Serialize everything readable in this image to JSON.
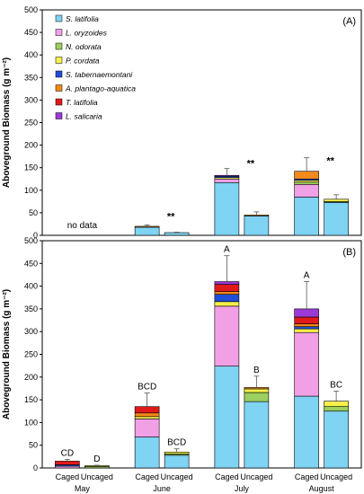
{
  "colors": {
    "S. latifolia": "#7fd3f3",
    "L. oryzoides": "#f2a0e6",
    "N. odorata": "#9bcf5f",
    "P. cordata": "#f7ef4a",
    "S. tabernaemontani": "#1f4fd8",
    "A. plantago-aquatica": "#f08a1a",
    "T. latifolia": "#e01a1a",
    "L. salicaria": "#9b3ad6"
  },
  "chart_data": [
    {
      "type": "bar",
      "stacked": true,
      "panel_label": "(A)",
      "ylabel": "Aboveground Biomass (g m⁻²)",
      "ylim": [
        0,
        500
      ],
      "yticks": [
        0,
        50,
        100,
        150,
        200,
        250,
        300,
        350,
        400,
        450,
        500
      ],
      "legend": {
        "placement": "top-left",
        "entries": [
          "S. latifolia",
          "L. oryzoides",
          "N. odorata",
          "P. cordata",
          "S. tabernaemontani",
          "A. plantago-aquatica",
          "T. latifolia",
          "L. salicaria"
        ]
      },
      "bars": [
        {
          "month": "June",
          "treatment": "Caged",
          "segments": [
            {
              "species": "S. latifolia",
              "value": 18
            },
            {
              "species": "A. plantago-aquatica",
              "value": 2
            }
          ],
          "error": 3
        },
        {
          "month": "June",
          "treatment": "Uncaged",
          "segments": [
            {
              "species": "S. latifolia",
              "value": 6
            }
          ],
          "error": 1
        },
        {
          "month": "July",
          "treatment": "Caged",
          "segments": [
            {
              "species": "S. latifolia",
              "value": 117
            },
            {
              "species": "L. oryzoides",
              "value": 8
            },
            {
              "species": "P. cordata",
              "value": 3
            },
            {
              "species": "S. tabernaemontani",
              "value": 3
            },
            {
              "species": "L. salicaria",
              "value": 2
            }
          ],
          "error": 15
        },
        {
          "month": "July",
          "treatment": "Uncaged",
          "segments": [
            {
              "species": "S. latifolia",
              "value": 43
            },
            {
              "species": "A. plantago-aquatica",
              "value": 2
            }
          ],
          "error": 7
        },
        {
          "month": "August",
          "treatment": "Caged",
          "segments": [
            {
              "species": "S. latifolia",
              "value": 85
            },
            {
              "species": "L. oryzoides",
              "value": 28
            },
            {
              "species": "N. odorata",
              "value": 5
            },
            {
              "species": "P. cordata",
              "value": 4
            },
            {
              "species": "S. tabernaemontani",
              "value": 3
            },
            {
              "species": "A. plantago-aquatica",
              "value": 17
            }
          ],
          "error": 30
        },
        {
          "month": "August",
          "treatment": "Uncaged",
          "segments": [
            {
              "species": "S. latifolia",
              "value": 73
            },
            {
              "species": "N. odorata",
              "value": 2
            },
            {
              "species": "P. cordata",
              "value": 5
            }
          ],
          "error": 10
        }
      ],
      "annotations": [
        {
          "text": "no data",
          "month": "May",
          "at": 0
        },
        {
          "text": "**",
          "month": "June",
          "at": 35
        },
        {
          "text": "**",
          "month": "July",
          "at": 152
        },
        {
          "text": "**",
          "month": "August",
          "at": 158
        }
      ]
    },
    {
      "type": "bar",
      "stacked": true,
      "panel_label": "(B)",
      "ylabel": "Aboveground Biomass (g m⁻²)",
      "ylim": [
        0,
        500
      ],
      "yticks": [
        0,
        50,
        100,
        150,
        200,
        250,
        300,
        350,
        400,
        450,
        500
      ],
      "categories_months": [
        "May",
        "June",
        "July",
        "August"
      ],
      "treatments": [
        "Caged",
        "Uncaged"
      ],
      "bars": [
        {
          "month": "May",
          "treatment": "Caged",
          "segments": [
            {
              "species": "L. oryzoides",
              "value": 4
            },
            {
              "species": "S. tabernaemontani",
              "value": 3
            },
            {
              "species": "T. latifolia",
              "value": 8
            }
          ],
          "error": 4,
          "letter": "CD"
        },
        {
          "month": "May",
          "treatment": "Uncaged",
          "segments": [
            {
              "species": "N. odorata",
              "value": 3
            },
            {
              "species": "P. cordata",
              "value": 2
            }
          ],
          "error": 1,
          "letter": "D"
        },
        {
          "month": "June",
          "treatment": "Caged",
          "segments": [
            {
              "species": "S. latifolia",
              "value": 68
            },
            {
              "species": "L. oryzoides",
              "value": 40
            },
            {
              "species": "P. cordata",
              "value": 5
            },
            {
              "species": "A. plantago-aquatica",
              "value": 8
            },
            {
              "species": "T. latifolia",
              "value": 14
            }
          ],
          "error": 30,
          "letter": "BCD"
        },
        {
          "month": "June",
          "treatment": "Uncaged",
          "segments": [
            {
              "species": "S. latifolia",
              "value": 28
            },
            {
              "species": "N. odorata",
              "value": 3
            },
            {
              "species": "P. cordata",
              "value": 4
            }
          ],
          "error": 7,
          "letter": "BCD"
        },
        {
          "month": "July",
          "treatment": "Caged",
          "segments": [
            {
              "species": "S. latifolia",
              "value": 224
            },
            {
              "species": "L. oryzoides",
              "value": 132
            },
            {
              "species": "P. cordata",
              "value": 10
            },
            {
              "species": "S. tabernaemontani",
              "value": 16
            },
            {
              "species": "A. plantago-aquatica",
              "value": 6
            },
            {
              "species": "T. latifolia",
              "value": 16
            },
            {
              "species": "L. salicaria",
              "value": 6
            }
          ],
          "error": 57,
          "letter": "A"
        },
        {
          "month": "July",
          "treatment": "Uncaged",
          "segments": [
            {
              "species": "S. latifolia",
              "value": 146
            },
            {
              "species": "N. odorata",
              "value": 20
            },
            {
              "species": "P. cordata",
              "value": 8
            },
            {
              "species": "A. plantago-aquatica",
              "value": 3
            }
          ],
          "error": 25,
          "letter": "B"
        },
        {
          "month": "August",
          "treatment": "Caged",
          "segments": [
            {
              "species": "S. latifolia",
              "value": 158
            },
            {
              "species": "L. oryzoides",
              "value": 140
            },
            {
              "species": "P. cordata",
              "value": 8
            },
            {
              "species": "S. tabernaemontani",
              "value": 5
            },
            {
              "species": "A. plantago-aquatica",
              "value": 6
            },
            {
              "species": "T. latifolia",
              "value": 15
            },
            {
              "species": "L. salicaria",
              "value": 18
            }
          ],
          "error": 60,
          "letter": "A"
        },
        {
          "month": "August",
          "treatment": "Uncaged",
          "segments": [
            {
              "species": "S. latifolia",
              "value": 125
            },
            {
              "species": "N. odorata",
              "value": 10
            },
            {
              "species": "P. cordata",
              "value": 12
            }
          ],
          "error": 22,
          "letter": "BC"
        }
      ]
    }
  ]
}
